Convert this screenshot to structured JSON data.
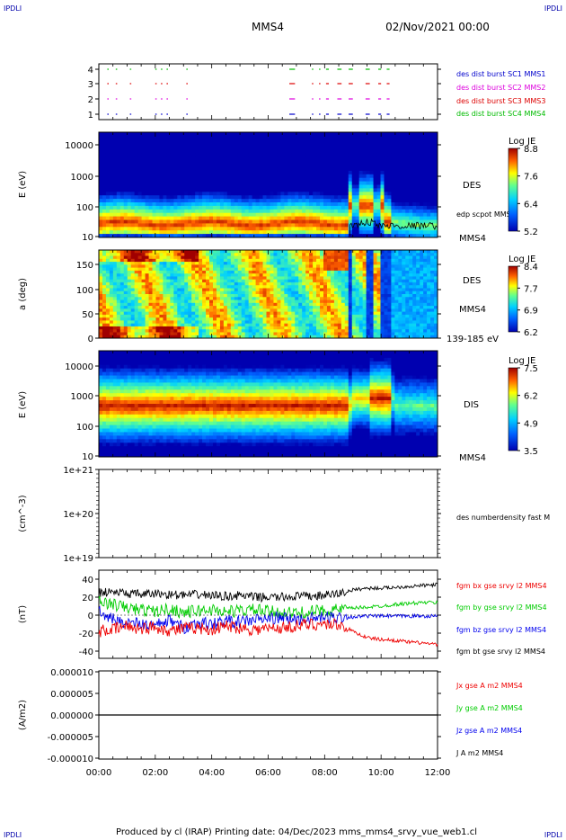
{
  "page": {
    "corner_tl": "IPDLI",
    "corner_tr": "IPDLI",
    "corner_bl": "IPDLI",
    "corner_br": "IPDLI",
    "title": "MMS4",
    "date": "02/Nov/2021 00:00",
    "footer": "Produced by cl (IRAP)   Printing date: 04/Dec/2023   mms_mms4_srvy_vue_web1.cl"
  },
  "colors": {
    "mms1": "#0000cc",
    "mms2": "#dd00dd",
    "mms3": "#dd0000",
    "mms4": "#00bb00",
    "bx": "#ee0000",
    "by": "#00cc00",
    "bz": "#0000ee",
    "bt": "#000000"
  },
  "chart_data": [
    {
      "type": "scatter",
      "panel": "burst-availability",
      "y_ticks": [
        "1",
        "2",
        "3",
        "4"
      ],
      "ylim": [
        0.5,
        4.5
      ],
      "legend": [
        "des dist burst SC1 MMS1",
        "des dist burst SC2 MMS2",
        "des dist burst SC3 MMS3",
        "des dist burst SC4 MMS4"
      ],
      "burst_intervals_hours": [
        [
          0.3,
          0.35
        ],
        [
          0.6,
          0.65
        ],
        [
          1.1,
          1.15
        ],
        [
          2.0,
          2.05
        ],
        [
          2.2,
          2.25
        ],
        [
          2.4,
          2.45
        ],
        [
          3.1,
          3.15
        ],
        [
          6.75,
          6.95
        ],
        [
          7.55,
          7.6
        ],
        [
          7.8,
          7.85
        ],
        [
          8.05,
          8.15
        ],
        [
          8.45,
          8.6
        ],
        [
          8.85,
          9.0
        ],
        [
          9.45,
          9.6
        ],
        [
          9.9,
          10.0
        ],
        [
          10.2,
          10.3
        ]
      ]
    },
    {
      "type": "heatmap",
      "panel": "des-energy",
      "ylabel": "E (eV)",
      "y_ticks": [
        "10",
        "100",
        "1000",
        "10000"
      ],
      "ylim": [
        10,
        30000
      ],
      "scale": "log",
      "label": "DES",
      "overlay": "edp scpot MMS4",
      "side_label": "MMS4",
      "colorbar": {
        "title": "Log JE",
        "ticks": [
          "8.8",
          "7.6",
          "6.4",
          "5.2"
        ]
      }
    },
    {
      "type": "heatmap",
      "panel": "des-pitch",
      "ylabel": "a (deg)",
      "y_ticks": [
        "0",
        "50",
        "100",
        "150"
      ],
      "ylim": [
        0,
        180
      ],
      "label": "DES",
      "side_label": "MMS4",
      "energy_range": "139-185 eV",
      "colorbar": {
        "title": "Log JE",
        "ticks": [
          "8.4",
          "7.7",
          "6.9",
          "6.2"
        ]
      }
    },
    {
      "type": "heatmap",
      "panel": "dis-energy",
      "ylabel": "E (eV)",
      "y_ticks": [
        "10",
        "100",
        "1000",
        "10000"
      ],
      "ylim": [
        10,
        30000
      ],
      "scale": "log",
      "label": "DIS",
      "side_label": "MMS4",
      "colorbar": {
        "title": "Log JE",
        "ticks": [
          "7.5",
          "6.2",
          "4.9",
          "3.5"
        ]
      }
    },
    {
      "type": "line",
      "panel": "density",
      "ylabel": "(cm^-3)",
      "y_ticks": [
        "1e+19",
        "1e+20",
        "1e+21"
      ],
      "ylim": [
        1e+19,
        1e+21
      ],
      "scale": "log",
      "legend": [
        "des numberdensity fast M"
      ]
    },
    {
      "type": "line",
      "panel": "fgm",
      "ylabel": "(nT)",
      "y_ticks": [
        "-40",
        "-20",
        "0",
        "20",
        "40"
      ],
      "ylim": [
        -48,
        48
      ],
      "legend": [
        "fgm bx gse srvy l2 MMS4",
        "fgm by gse srvy l2 MMS4",
        "fgm bz gse srvy l2 MMS4",
        "fgm bt gse srvy l2 MMS4"
      ],
      "series": [
        {
          "name": "fgm bx gse srvy l2 MMS4",
          "x": [
            0,
            0.5,
            1,
            1.5,
            2,
            2.5,
            3,
            3.5,
            4,
            4.5,
            5,
            5.5,
            6,
            6.5,
            7,
            7.5,
            8,
            8.5,
            9,
            9.5,
            10,
            10.5,
            11,
            11.5,
            12
          ],
          "values": [
            -18,
            -16,
            -12,
            -15,
            -13,
            -17,
            -15,
            -14,
            -16,
            -12,
            -14,
            -16,
            -15,
            -14,
            -12,
            -10,
            -10,
            -10,
            -18,
            -25,
            -27,
            -28,
            -30,
            -31,
            -33
          ]
        },
        {
          "name": "fgm by gse srvy l2 MMS4",
          "x": [
            0,
            0.5,
            1,
            1.5,
            2,
            2.5,
            3,
            3.5,
            4,
            4.5,
            5,
            5.5,
            6,
            6.5,
            7,
            7.5,
            8,
            8.5,
            9,
            9.5,
            10,
            10.5,
            11,
            11.5,
            12
          ],
          "values": [
            15,
            12,
            8,
            6,
            4,
            7,
            3,
            5,
            6,
            4,
            5,
            6,
            4,
            3,
            2,
            4,
            5,
            6,
            8,
            9,
            10,
            12,
            13,
            14,
            14
          ]
        },
        {
          "name": "fgm bz gse srvy l2 MMS4",
          "x": [
            0,
            0.5,
            1,
            1.5,
            2,
            2.5,
            3,
            3.5,
            4,
            4.5,
            5,
            5.5,
            6,
            6.5,
            7,
            7.5,
            8,
            8.5,
            9,
            9.5,
            10,
            10.5,
            11,
            11.5,
            12
          ],
          "values": [
            5,
            -5,
            -8,
            -10,
            -12,
            -6,
            -14,
            -8,
            -10,
            -6,
            -8,
            -5,
            -4,
            -3,
            -5,
            -4,
            -3,
            -2,
            -2,
            -1,
            -1,
            -1,
            -1,
            -1,
            -1
          ]
        },
        {
          "name": "fgm bt gse srvy l2 MMS4",
          "x": [
            0,
            0.5,
            1,
            1.5,
            2,
            2.5,
            3,
            3.5,
            4,
            4.5,
            5,
            5.5,
            6,
            6.5,
            7,
            7.5,
            8,
            8.5,
            9,
            9.5,
            10,
            10.5,
            11,
            11.5,
            12
          ],
          "values": [
            25,
            26,
            24,
            23,
            24,
            23,
            22,
            23,
            22,
            21,
            22,
            20,
            20,
            20,
            21,
            21,
            22,
            24,
            28,
            30,
            30,
            31,
            32,
            33,
            34
          ]
        }
      ]
    },
    {
      "type": "line",
      "panel": "current",
      "ylabel": "(A/m2)",
      "y_ticks": [
        "-0.000010",
        "-0.000005",
        "0.000000",
        "0.000005",
        "0.000010"
      ],
      "ylim": [
        -1e-05,
        1e-05
      ],
      "legend": [
        "Jx gse A m2 MMS4",
        "Jy gse A m2 MMS4",
        "Jz gse A m2 MMS4",
        "J A m2 MMS4"
      ],
      "series": [
        {
          "name": "J A m2 MMS4",
          "x": [
            0,
            12
          ],
          "values": [
            0,
            0
          ]
        }
      ]
    }
  ],
  "x_axis": {
    "ticks": [
      "00:00",
      "02:00",
      "04:00",
      "06:00",
      "08:00",
      "10:00",
      "12:00"
    ],
    "xlim_hours": [
      0,
      12
    ]
  }
}
